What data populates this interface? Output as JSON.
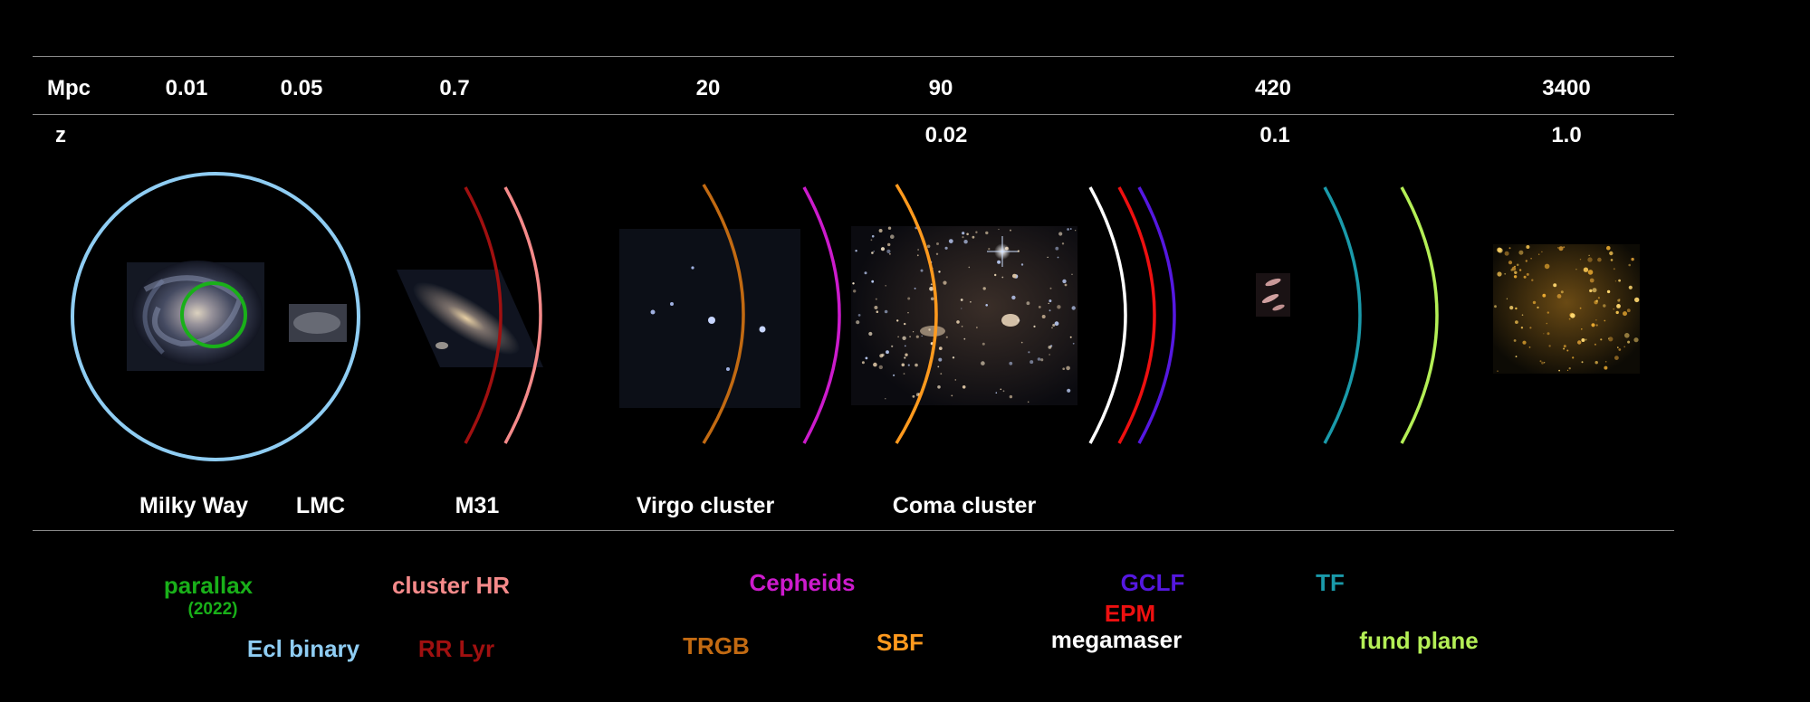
{
  "scale": {
    "mpc_label": "Mpc",
    "mpc_values": [
      "0.01",
      "0.05",
      "0.7",
      "20",
      "90",
      "420",
      "3400"
    ],
    "z_label": "z",
    "z_values": [
      "0.02",
      "0.1",
      "1.0"
    ]
  },
  "objects": [
    "Milky Way",
    "LMC",
    "M31",
    "Virgo cluster",
    "Coma cluster"
  ],
  "methods": {
    "parallax": {
      "label": "parallax",
      "note": "(2022)",
      "color": "#19b019"
    },
    "ecl_binary": {
      "label": "Ecl binary",
      "color": "#8fcdf3"
    },
    "cluster_hr": {
      "label": "cluster HR",
      "color": "#f58a8a"
    },
    "rr_lyr": {
      "label": "RR Lyr",
      "color": "#a01010"
    },
    "cepheids": {
      "label": "Cepheids",
      "color": "#cc1bcc"
    },
    "trgb": {
      "label": "TRGB",
      "color": "#c26a12"
    },
    "sbf": {
      "label": "SBF",
      "color": "#ff9a1e"
    },
    "gclf": {
      "label": "GCLF",
      "color": "#5518e0"
    },
    "epm": {
      "label": "EPM",
      "color": "#ee1010"
    },
    "megamaser": {
      "label": "megamaser",
      "color": "#ffffff"
    },
    "tf": {
      "label": "TF",
      "color": "#1a9aaa"
    },
    "fund_plane": {
      "label": "fund plane",
      "color": "#b4ef56"
    }
  }
}
